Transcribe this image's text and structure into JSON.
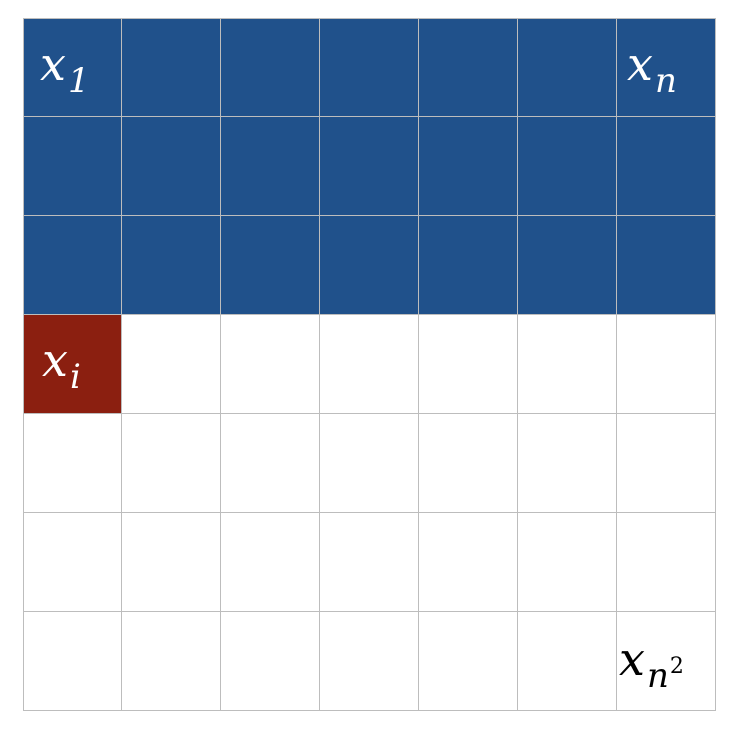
{
  "grid": {
    "rows": 7,
    "cols": 7,
    "filled_count": 21,
    "highlight_index": 22
  },
  "colors": {
    "filled": "#20518b",
    "highlight": "#8b1f10",
    "empty": "#ffffff",
    "grid_line": "#bdbdbd",
    "label_on_dark": "#ffffff",
    "label_on_light": "#000000"
  },
  "labels": [
    {
      "cell": 1,
      "var": "x",
      "sub": "1",
      "sup": "",
      "pos": "tl"
    },
    {
      "cell": 7,
      "var": "x",
      "sub": "n",
      "sup": "",
      "pos": "tr"
    },
    {
      "cell": 22,
      "var": "x",
      "sub": "i",
      "sup": "",
      "pos": "c"
    },
    {
      "cell": 49,
      "var": "x",
      "sub": "n",
      "sup": "2",
      "pos": "br"
    }
  ]
}
